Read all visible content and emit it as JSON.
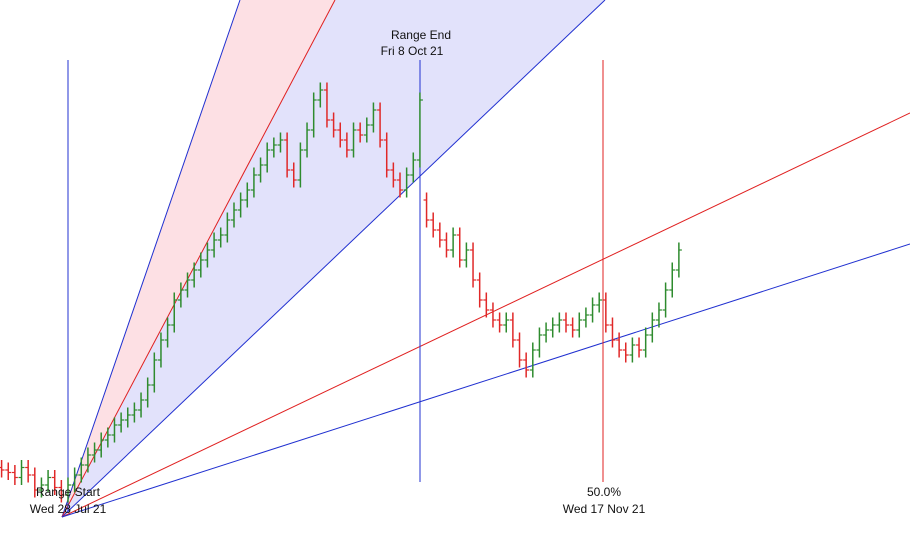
{
  "chart_data": {
    "type": "ohlc",
    "annotations": [
      "Range End",
      "Fri 8 Oct 21",
      "Range Start",
      "Wed 28 Jul 21",
      "50.0%",
      "Wed 17 Nov 21"
    ],
    "ylim": [
      0,
      110
    ],
    "up_color": "#2e8b2e",
    "down_color": "#e02828",
    "open": [
      16.5,
      16,
      15.5,
      14.5,
      16.5,
      15,
      12,
      13,
      14.5,
      12.5,
      11,
      13,
      15,
      17,
      19,
      20,
      22,
      23,
      25,
      26,
      27,
      28,
      30,
      33,
      38,
      42,
      45,
      50,
      52,
      54,
      56,
      58,
      60,
      62,
      63,
      66,
      68,
      70,
      72,
      75,
      77,
      80,
      81,
      82,
      76,
      74,
      80,
      84,
      90,
      92,
      86,
      84,
      82,
      80,
      84,
      83,
      85,
      88,
      82,
      76,
      74,
      72,
      75,
      78,
      70,
      66,
      64,
      62,
      60,
      63,
      58,
      60,
      54,
      50,
      48,
      46,
      45,
      46,
      42,
      38,
      36,
      40,
      43,
      44,
      45,
      46,
      45,
      44,
      46,
      47,
      49,
      50,
      45,
      42,
      40,
      39,
      41,
      40,
      43,
      46,
      48,
      52,
      56
    ],
    "high": [
      18,
      17.5,
      17,
      18,
      18,
      16.5,
      14.5,
      16,
      16,
      14,
      14.5,
      16.5,
      18.5,
      20.5,
      21.5,
      23.5,
      24.5,
      26.5,
      27.5,
      28.5,
      29.5,
      31.5,
      34.5,
      39.5,
      43.5,
      46.5,
      51.5,
      53.5,
      55.5,
      57.5,
      59.5,
      61.5,
      63.5,
      64.5,
      67.5,
      69.5,
      71.5,
      73.5,
      76.5,
      78.5,
      81.5,
      82.5,
      83.5,
      83.5,
      77.5,
      81.5,
      85.5,
      91.5,
      93.5,
      93.5,
      87.5,
      85.5,
      83.5,
      85.5,
      85.5,
      86.5,
      89.5,
      89.5,
      83.5,
      77.5,
      75.5,
      76.5,
      79.5,
      91.5,
      71.5,
      67.5,
      65.5,
      63.5,
      64.5,
      64.5,
      61.5,
      61.5,
      55.5,
      51.5,
      49.5,
      47.5,
      47.5,
      47.5,
      43.5,
      39.5,
      41.5,
      44.5,
      45.5,
      46.5,
      47.5,
      47.5,
      46.5,
      47.5,
      48.5,
      50.5,
      51.5,
      51.5,
      46.5,
      43.5,
      41.5,
      42.5,
      42.5,
      44.5,
      47.5,
      49.5,
      53.5,
      57.5,
      61.5
    ],
    "low": [
      14.5,
      14,
      13,
      13,
      13.5,
      10.5,
      10.5,
      11.5,
      11,
      9.5,
      9.5,
      11.5,
      13.5,
      15.5,
      17.5,
      18.5,
      20.5,
      21.5,
      23.5,
      24.5,
      25.5,
      26.5,
      28.5,
      31.5,
      36.5,
      40.5,
      43.5,
      48.5,
      50.5,
      52.5,
      54.5,
      56.5,
      58.5,
      60.5,
      61.5,
      64.5,
      66.5,
      68.5,
      70.5,
      73.5,
      75.5,
      78.5,
      79.5,
      74.5,
      72.5,
      72.5,
      78.5,
      82.5,
      88.5,
      84.5,
      82.5,
      80.5,
      78.5,
      78.5,
      81.5,
      81.5,
      83.5,
      80.5,
      74.5,
      72.5,
      70.5,
      70.5,
      73.5,
      76.5,
      64.5,
      62.5,
      60.5,
      58.5,
      58.5,
      56.5,
      56.5,
      52.5,
      48.5,
      46.5,
      44.5,
      43.5,
      43.5,
      40.5,
      36.5,
      34.5,
      34.5,
      38.5,
      41.5,
      42.5,
      43.5,
      43.5,
      42.5,
      42.5,
      44.5,
      45.5,
      47.5,
      43.5,
      40.5,
      38.5,
      37.5,
      37.5,
      38.5,
      38.5,
      41.5,
      44.5,
      46.5,
      50.5,
      54.5
    ],
    "close": [
      16,
      15.5,
      14.5,
      16.5,
      15,
      12,
      13,
      14.5,
      12.5,
      11,
      13,
      15,
      17,
      19,
      20,
      22,
      23,
      25,
      26,
      27,
      28,
      30,
      33,
      38,
      42,
      45,
      50,
      52,
      54,
      56,
      58,
      60,
      62,
      63,
      66,
      68,
      70,
      72,
      75,
      77,
      80,
      81,
      82,
      76,
      74,
      80,
      84,
      90,
      92,
      86,
      84,
      82,
      80,
      84,
      83,
      85,
      88,
      82,
      76,
      74,
      72,
      75,
      78,
      90,
      66,
      64,
      62,
      60,
      63,
      58,
      60,
      54,
      50,
      48,
      46,
      45,
      46,
      42,
      38,
      36,
      40,
      43,
      44,
      45,
      46,
      45,
      44,
      46,
      47,
      49,
      50,
      45,
      42,
      40,
      39,
      41,
      40,
      43,
      46,
      48,
      52,
      56,
      60
    ]
  }
}
